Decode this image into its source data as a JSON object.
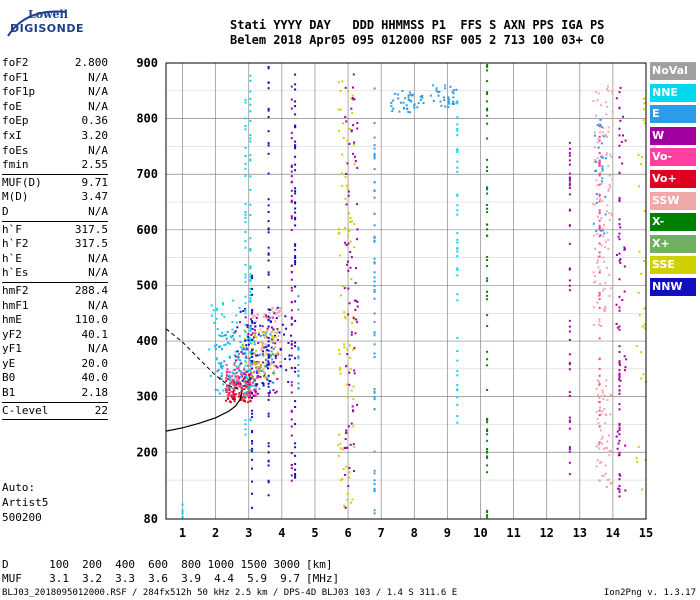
{
  "logo": {
    "line1": "Lowell",
    "line2": "DIGISONDE"
  },
  "header": {
    "row1": [
      "Stati",
      "YYYY",
      "DAY",
      "DDD",
      "HHMMSS",
      "P1",
      "FFS",
      "S",
      "AXN",
      "PPS",
      "IGA",
      "PS"
    ],
    "row2": [
      "Belem",
      "2018",
      "Apr05",
      "095",
      "012000",
      "RSF",
      "005",
      "2",
      "713",
      "100",
      "03+",
      "C0"
    ]
  },
  "params": [
    [
      {
        "k": "foF2",
        "v": "2.800"
      },
      {
        "k": "foF1",
        "v": "N/A"
      },
      {
        "k": "foF1p",
        "v": "N/A"
      },
      {
        "k": "foE",
        "v": "N/A"
      },
      {
        "k": "foEp",
        "v": "0.36"
      },
      {
        "k": "fxI",
        "v": "3.20"
      },
      {
        "k": "foEs",
        "v": "N/A"
      },
      {
        "k": "fmin",
        "v": "2.55"
      }
    ],
    [
      {
        "k": "MUF(D)",
        "v": "9.71"
      },
      {
        "k": "M(D)",
        "v": "3.47"
      },
      {
        "k": "D",
        "v": "N/A"
      }
    ],
    [
      {
        "k": "h`F",
        "v": "317.5"
      },
      {
        "k": "h`F2",
        "v": "317.5"
      },
      {
        "k": "h`E",
        "v": "N/A"
      },
      {
        "k": "h`Es",
        "v": "N/A"
      }
    ],
    [
      {
        "k": "hmF2",
        "v": "288.4"
      },
      {
        "k": "hmF1",
        "v": "N/A"
      },
      {
        "k": "hmE",
        "v": "110.0"
      },
      {
        "k": "yF2",
        "v": "40.1"
      },
      {
        "k": "yF1",
        "v": "N/A"
      },
      {
        "k": "yE",
        "v": "20.0"
      },
      {
        "k": "B0",
        "v": "40.0"
      },
      {
        "k": "B1",
        "v": "2.18"
      }
    ],
    [
      {
        "k": "C-level",
        "v": "22"
      }
    ]
  ],
  "auto": {
    "line1": "Auto:",
    "line2": "Artist5",
    "line3": "500200"
  },
  "legend": [
    {
      "label": "NoVal",
      "color": "#a0a0a0"
    },
    {
      "label": "NNE",
      "color": "#00d8f0"
    },
    {
      "label": "E",
      "color": "#2c9ce8"
    },
    {
      "label": "W",
      "color": "#a000a0"
    },
    {
      "label": "Vo-",
      "color": "#ff40a0"
    },
    {
      "label": "Vo+",
      "color": "#e00020"
    },
    {
      "label": "SSW",
      "color": "#f0a8a8"
    },
    {
      "label": "X-",
      "color": "#008000"
    },
    {
      "label": "X+",
      "color": "#70b060"
    },
    {
      "label": "SSE",
      "color": "#d0d000"
    },
    {
      "label": "NNW",
      "color": "#1010c0"
    }
  ],
  "dmuf": {
    "d_label": "D",
    "d_values": [
      "100",
      "200",
      "400",
      "600",
      "800",
      "1000",
      "1500",
      "3000"
    ],
    "d_unit": "[km]",
    "muf_label": "MUF",
    "muf_values": [
      "3.1",
      "3.2",
      "3.3",
      "3.6",
      "3.9",
      "4.4",
      "5.9",
      "9.7"
    ],
    "muf_unit": "[MHz]"
  },
  "footer": "BLJ03_2018095012000.RSF / 284fx512h 50 kHz 2.5 km / DPS-4D BLJ03 103 / 1.4 S 311.6 E",
  "version": "Ion2Png v. 1.3.17",
  "chart_data": {
    "type": "scatter",
    "xlim": [
      0.5,
      15
    ],
    "ylim": [
      80,
      900
    ],
    "x_ticks": [
      1,
      2,
      3,
      4,
      5,
      6,
      7,
      8,
      9,
      10,
      11,
      12,
      13,
      14,
      15
    ],
    "y_ticks": [
      200,
      300,
      400,
      500,
      600,
      700,
      800,
      900
    ],
    "y_tick_labels": [
      80,
      200,
      300,
      400,
      500,
      600,
      700,
      800,
      900
    ],
    "grid": true,
    "legend_position": "right",
    "trace": {
      "name": "profile",
      "points": [
        [
          0.5,
          238
        ],
        [
          1.0,
          244
        ],
        [
          1.5,
          252
        ],
        [
          2.0,
          262
        ],
        [
          2.4,
          274
        ],
        [
          2.6,
          283
        ],
        [
          2.75,
          296
        ],
        [
          2.8,
          312
        ]
      ]
    },
    "trace_dashed": {
      "points": [
        [
          0.5,
          422
        ],
        [
          1.0,
          398
        ],
        [
          1.5,
          368
        ],
        [
          2.0,
          338
        ],
        [
          2.4,
          320
        ],
        [
          2.75,
          312
        ]
      ]
    },
    "clusters": [
      {
        "color": "#e00020",
        "xr": [
          2.3,
          3.1
        ],
        "yr": [
          290,
          340
        ],
        "n": 120
      },
      {
        "color": "#ff40a0",
        "xr": [
          2.3,
          3.3
        ],
        "yr": [
          300,
          360
        ],
        "n": 90
      },
      {
        "color": "#2c9ce8",
        "xr": [
          2.0,
          3.8
        ],
        "yr": [
          300,
          420
        ],
        "n": 90
      },
      {
        "color": "#00d8f0",
        "xr": [
          1.8,
          3.0
        ],
        "yr": [
          310,
          480
        ],
        "n": 60
      },
      {
        "color": "#a000a0",
        "xr": [
          2.6,
          4.0
        ],
        "yr": [
          300,
          450
        ],
        "n": 80
      },
      {
        "color": "#1010c0",
        "xr": [
          2.6,
          4.3
        ],
        "yr": [
          320,
          460
        ],
        "n": 70
      },
      {
        "color": "#f0a8a8",
        "xr": [
          3.1,
          4.0
        ],
        "yr": [
          340,
          460
        ],
        "n": 70
      },
      {
        "color": "#d0d000",
        "xr": [
          2.8,
          3.9
        ],
        "yr": [
          330,
          420
        ],
        "n": 40
      },
      {
        "color": "#70b060",
        "xr": [
          2.5,
          3.8
        ],
        "yr": [
          310,
          400
        ],
        "n": 30
      },
      {
        "color": "#d0d000",
        "xr": [
          5.7,
          6.2
        ],
        "yr": [
          100,
          880
        ],
        "n": 90
      },
      {
        "color": "#a000a0",
        "xr": [
          5.9,
          6.3
        ],
        "yr": [
          100,
          880
        ],
        "n": 80
      },
      {
        "color": "#2c9ce8",
        "xr": [
          7.3,
          8.3
        ],
        "yr": [
          810,
          850
        ],
        "n": 40
      },
      {
        "color": "#2c9ce8",
        "xr": [
          8.5,
          9.3
        ],
        "yr": [
          820,
          860
        ],
        "n": 30
      },
      {
        "color": "#f0a8a8",
        "xr": [
          13.4,
          14.0
        ],
        "yr": [
          420,
          860
        ],
        "n": 110
      },
      {
        "color": "#f0a8a8",
        "xr": [
          13.5,
          14.0
        ],
        "yr": [
          130,
          330
        ],
        "n": 60
      },
      {
        "color": "#2c9ce8",
        "xr": [
          13.4,
          13.8
        ],
        "yr": [
          580,
          800
        ],
        "n": 30
      },
      {
        "color": "#a000a0",
        "xr": [
          14.1,
          14.4
        ],
        "yr": [
          120,
          880
        ],
        "n": 40
      },
      {
        "color": "#d0d000",
        "xr": [
          14.7,
          15.0
        ],
        "yr": [
          120,
          880
        ],
        "n": 30
      }
    ],
    "columns": [
      {
        "color": "#00d8f0",
        "x": 1.0,
        "yr": [
          80,
          110
        ]
      },
      {
        "color": "#00d8f0",
        "x": 2.9,
        "yr": [
          230,
          860
        ]
      },
      {
        "color": "#00d8f0",
        "x": 3.05,
        "yr": [
          200,
          880
        ]
      },
      {
        "color": "#1010c0",
        "x": 3.1,
        "yr": [
          100,
          520
        ]
      },
      {
        "color": "#1010c0",
        "x": 3.6,
        "yr": [
          100,
          900
        ]
      },
      {
        "color": "#a000a0",
        "x": 4.3,
        "yr": [
          120,
          880
        ]
      },
      {
        "color": "#1010c0",
        "x": 4.4,
        "yr": [
          120,
          880
        ]
      },
      {
        "color": "#2c9ce8",
        "x": 4.5,
        "yr": [
          300,
          500
        ]
      },
      {
        "color": "#2c9ce8",
        "x": 6.8,
        "yr": [
          80,
          880
        ]
      },
      {
        "color": "#00d8f0",
        "x": 9.3,
        "yr": [
          240,
          840
        ]
      },
      {
        "color": "#008000",
        "x": 10.2,
        "yr": [
          80,
          900
        ]
      },
      {
        "color": "#a000a0",
        "x": 12.7,
        "yr": [
          150,
          760
        ]
      },
      {
        "color": "#ff40a0",
        "x": 13.6,
        "yr": [
          200,
          800
        ]
      },
      {
        "color": "#a000a0",
        "x": 14.2,
        "yr": [
          120,
          880
        ]
      }
    ]
  }
}
